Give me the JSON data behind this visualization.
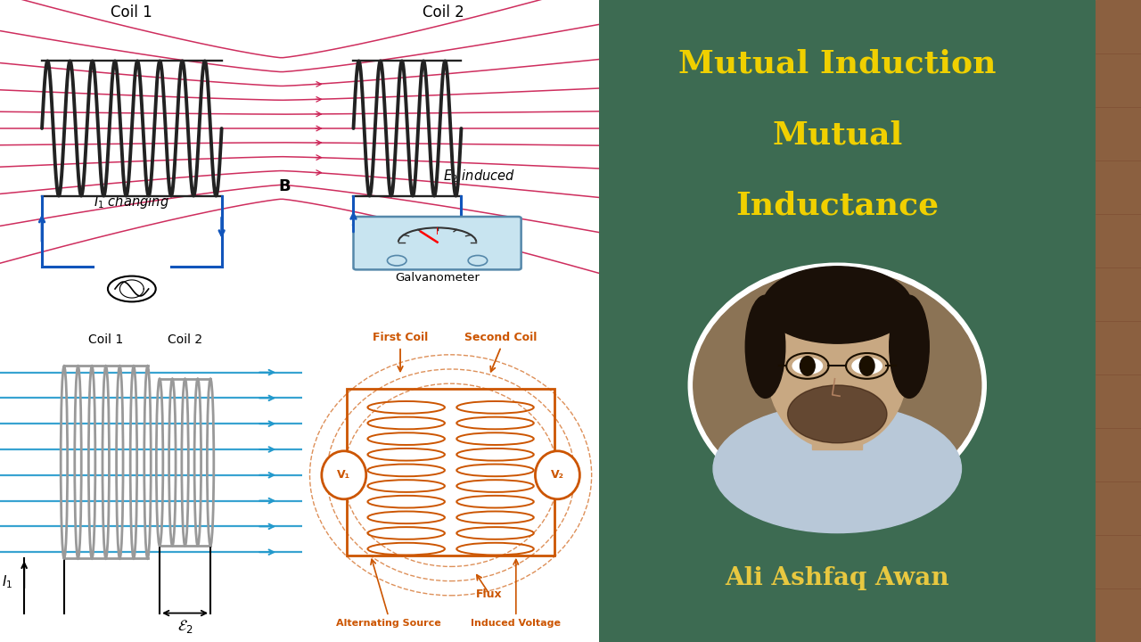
{
  "title_line1": "Mutual Induction",
  "title_line2": "Mutual",
  "title_line3": "Inductance",
  "author": "Ali Ashfaq Awan",
  "bg_right": "#3d6b52",
  "title_color": "#f0d000",
  "author_color": "#e8c840",
  "coil1_label": "Coil 1",
  "coil2_label": "Coil 2",
  "B_label": "B",
  "I1_label": "$I_1$ changing",
  "E2_label": "$E_2$ induced",
  "galv_label": "Galvanometer",
  "coil_color_top": "#222222",
  "field_line_color": "#cc2255",
  "circuit_color": "#1155bb",
  "bottom_coil_color": "#999999",
  "bottom_field_color": "#2299cc",
  "orange_color": "#cc5500",
  "first_coil_label": "First Coil",
  "second_coil_label": "Second Coil",
  "flux_label": "Flux",
  "alt_source_label": "Alternating Source",
  "ind_voltage_label": "Induced Voltage",
  "coil1_label_bottom": "Coil 1",
  "coil2_label_bottom": "Coil 2",
  "I1_bottom": "$I_1$",
  "E2_bottom": "$\\mathcal{E}_2$",
  "photo_face_color": "#c8a882",
  "photo_hair_color": "#1a1008",
  "photo_bg_color": "#8b6b4a",
  "wood_color": "#8b6040"
}
